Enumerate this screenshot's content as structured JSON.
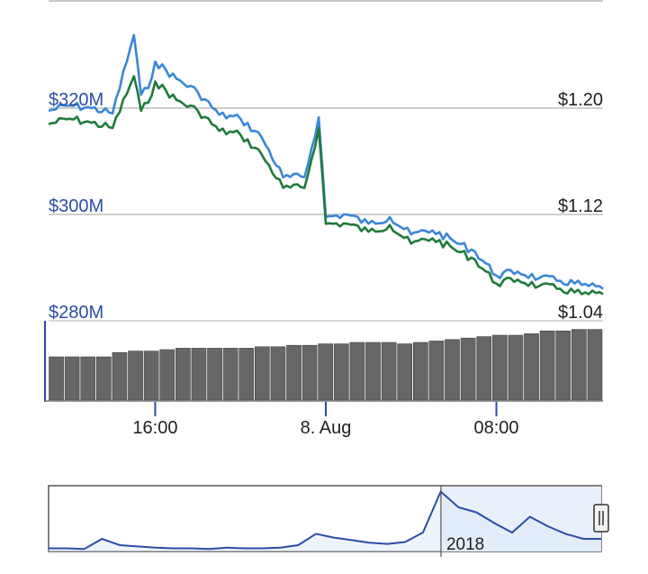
{
  "chart_data": {
    "type": "line",
    "title": "",
    "left_axis": {
      "ticks": [
        {
          "value": 320,
          "label": "$320M"
        },
        {
          "value": 300,
          "label": "$300M"
        },
        {
          "value": 280,
          "label": "$280M"
        }
      ],
      "range": [
        280,
        320
      ]
    },
    "right_axis": {
      "ticks": [
        {
          "value": 1.2,
          "label": "$1.20"
        },
        {
          "value": 1.12,
          "label": "$1.12"
        },
        {
          "value": 1.04,
          "label": "$1.04"
        }
      ],
      "range": [
        1.04,
        1.2
      ]
    },
    "x_axis": {
      "range": [
        "7 Aug 11:00",
        "8 Aug 13:00"
      ],
      "ticks": [
        "16:00",
        "8. Aug",
        "08:00"
      ]
    },
    "series": [
      {
        "axis": "right",
        "color": "#3a86d8",
        "x": [
          "7 Aug 11:00",
          "7 Aug 12:00",
          "7 Aug 13:00",
          "7 Aug 14:00",
          "7 Aug 15:00",
          "7 Aug 15:20",
          "7 Aug 15:40",
          "7 Aug 16:00",
          "7 Aug 17:00",
          "7 Aug 18:00",
          "7 Aug 19:00",
          "7 Aug 20:00",
          "7 Aug 21:00",
          "7 Aug 22:00",
          "7 Aug 23:00",
          "7 Aug 23:40",
          "8 Aug 00:00",
          "8 Aug 01:00",
          "8 Aug 02:00",
          "8 Aug 03:00",
          "8 Aug 04:00",
          "8 Aug 05:00",
          "8 Aug 06:00",
          "8 Aug 07:00",
          "8 Aug 08:00",
          "8 Aug 09:00",
          "8 Aug 10:00",
          "8 Aug 11:00",
          "8 Aug 12:00",
          "8 Aug 13:00"
        ],
        "values": [
          1.198,
          1.202,
          1.2,
          1.196,
          1.255,
          1.21,
          1.215,
          1.235,
          1.222,
          1.212,
          1.195,
          1.192,
          1.178,
          1.148,
          1.148,
          1.193,
          1.118,
          1.12,
          1.113,
          1.118,
          1.105,
          1.108,
          1.1,
          1.092,
          1.074,
          1.077,
          1.072,
          1.07,
          1.067,
          1.064
        ]
      },
      {
        "axis": "right",
        "color": "#1f7a3c",
        "x": [
          "7 Aug 11:00",
          "7 Aug 12:00",
          "7 Aug 13:00",
          "7 Aug 14:00",
          "7 Aug 15:00",
          "7 Aug 15:20",
          "7 Aug 15:40",
          "7 Aug 16:00",
          "7 Aug 17:00",
          "7 Aug 18:00",
          "7 Aug 19:00",
          "7 Aug 20:00",
          "7 Aug 21:00",
          "7 Aug 22:00",
          "7 Aug 23:00",
          "7 Aug 23:40",
          "8 Aug 00:00",
          "8 Aug 01:00",
          "8 Aug 02:00",
          "8 Aug 03:00",
          "8 Aug 04:00",
          "8 Aug 05:00",
          "8 Aug 06:00",
          "8 Aug 07:00",
          "8 Aug 08:00",
          "8 Aug 09:00",
          "8 Aug 10:00",
          "8 Aug 11:00",
          "8 Aug 12:00",
          "8 Aug 13:00"
        ],
        "values": [
          1.188,
          1.192,
          1.189,
          1.185,
          1.224,
          1.198,
          1.204,
          1.22,
          1.206,
          1.198,
          1.183,
          1.18,
          1.165,
          1.14,
          1.14,
          1.185,
          1.113,
          1.113,
          1.107,
          1.112,
          1.098,
          1.102,
          1.094,
          1.086,
          1.068,
          1.071,
          1.066,
          1.064,
          1.06,
          1.06
        ]
      }
    ],
    "volume": {
      "values": [
        30,
        30,
        30,
        30,
        33,
        34,
        34,
        35,
        36,
        36,
        36,
        36,
        36,
        37,
        37,
        38,
        38,
        39,
        39,
        40,
        40,
        40,
        39,
        40,
        41,
        42,
        43,
        44,
        45,
        45,
        46,
        48,
        48,
        49,
        49
      ],
      "max": 50
    },
    "navigator": {
      "label": "2018",
      "values": [
        0.05,
        0.05,
        0.04,
        0.2,
        0.1,
        0.08,
        0.06,
        0.05,
        0.05,
        0.04,
        0.06,
        0.05,
        0.05,
        0.06,
        0.1,
        0.28,
        0.22,
        0.18,
        0.14,
        0.12,
        0.15,
        0.3,
        0.95,
        0.7,
        0.62,
        0.45,
        0.3,
        0.55,
        0.4,
        0.28,
        0.2,
        0.2
      ],
      "selected_from": 0.71,
      "selected_to": 1.0
    }
  }
}
